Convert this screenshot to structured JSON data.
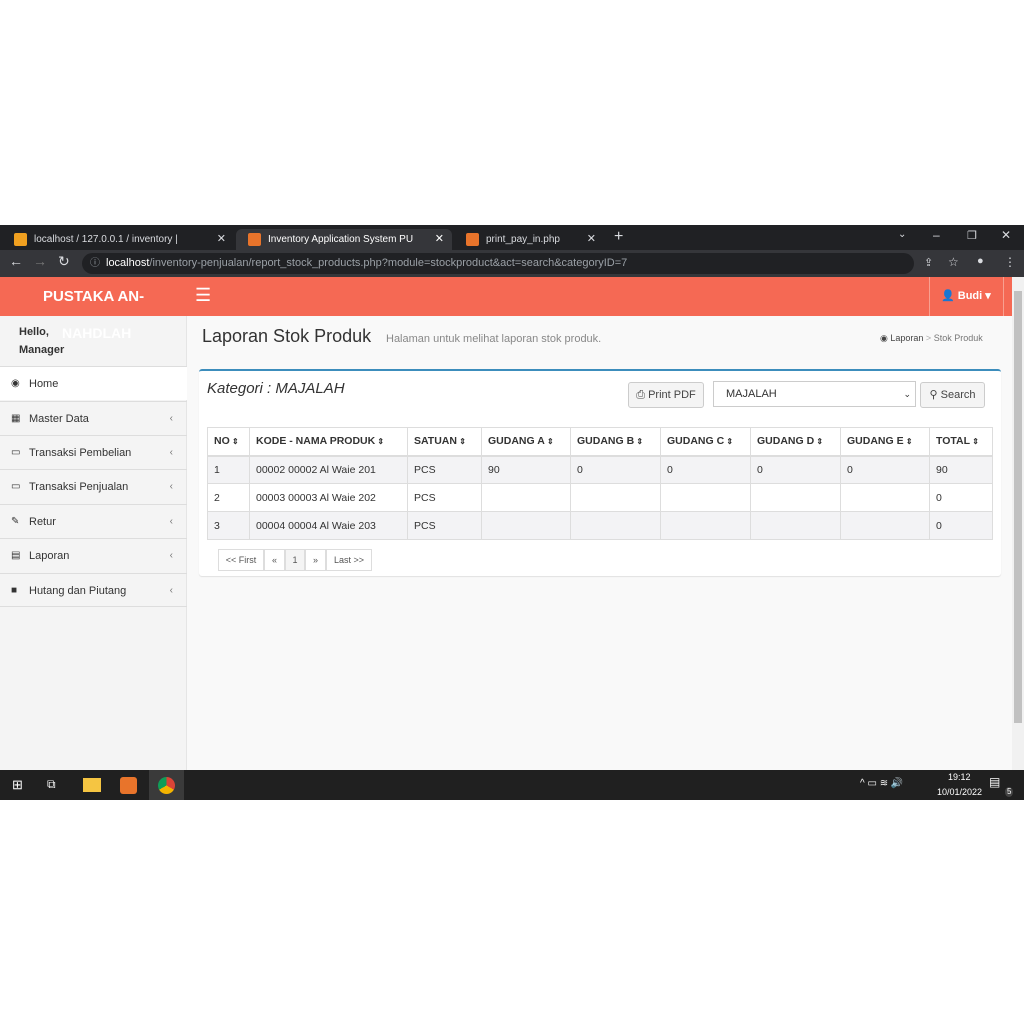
{
  "browser": {
    "tabs": [
      {
        "title": "localhost / 127.0.0.1 / inventory |"
      },
      {
        "title": "Inventory Application System PU"
      },
      {
        "title": "print_pay_in.php"
      }
    ],
    "url_host": "localhost",
    "url_path": "/inventory-penjualan/report_stock_products.php?module=stockproduct&act=search&categoryID=7"
  },
  "header": {
    "brand": "PUSTAKA AN-",
    "user": "Budi"
  },
  "sidebar": {
    "hello": "Hello,",
    "brand_overflow": "NAHDLAH",
    "role": "Manager",
    "items": [
      {
        "label": "Home",
        "icon": "dashboard-icon"
      },
      {
        "label": "Master Data",
        "icon": "grid-icon"
      },
      {
        "label": "Transaksi Pembelian",
        "icon": "laptop-icon"
      },
      {
        "label": "Transaksi Penjualan",
        "icon": "laptop-icon"
      },
      {
        "label": "Retur",
        "icon": "edit-icon"
      },
      {
        "label": "Laporan",
        "icon": "chart-icon"
      },
      {
        "label": "Hutang dan Piutang",
        "icon": "folder-icon"
      }
    ]
  },
  "page": {
    "title": "Laporan Stok Produk",
    "subtitle": "Halaman untuk melihat laporan stok produk.",
    "breadcrumb": [
      "Laporan",
      "Stok Produk"
    ],
    "category_label": "Kategori : MAJALAH",
    "print_label": "Print PDF",
    "select_value": "MAJALAH",
    "search_label": "Search",
    "columns": [
      "NO",
      "KODE - NAMA PRODUK",
      "SATUAN",
      "GUDANG A",
      "GUDANG B",
      "GUDANG C",
      "GUDANG D",
      "GUDANG E",
      "TOTAL"
    ],
    "rows": [
      [
        "1",
        "00002 00002 Al Waie 201",
        "PCS",
        "90",
        "0",
        "0",
        "0",
        "0",
        "90"
      ],
      [
        "2",
        "00003 00003 Al Waie 202",
        "PCS",
        "",
        "",
        "",
        "",
        "",
        "0"
      ],
      [
        "3",
        "00004 00004 Al Waie 203",
        "PCS",
        "",
        "",
        "",
        "",
        "",
        "0"
      ]
    ],
    "pagination": [
      "<< First",
      "«",
      "1",
      "»",
      "Last >>"
    ]
  },
  "taskbar": {
    "time": "19:12",
    "date": "10/01/2022",
    "notifications": "5"
  },
  "colors": {
    "header": "#f56954",
    "accent": "#3c8dbc"
  }
}
